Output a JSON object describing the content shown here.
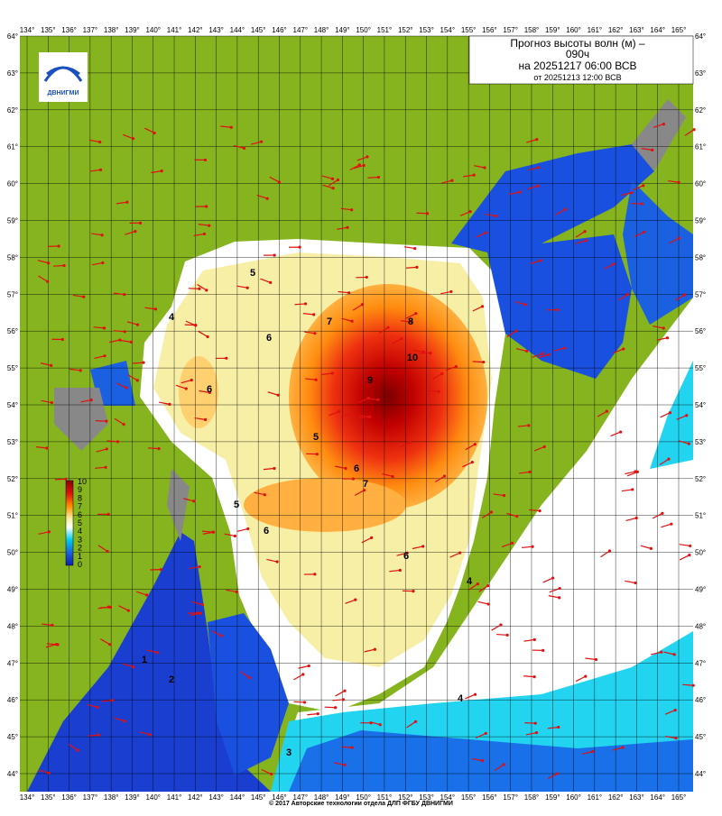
{
  "header": {
    "title_line1": "Прогноз высоты волн (м) –",
    "title_line2": "090ч",
    "title_line3": "на 20251217 06:00 ВСВ",
    "title_line4": "от 20251213 12:00 ВСВ"
  },
  "logo": {
    "text": "ДВНИГМИ"
  },
  "axes": {
    "lon_labels": [
      "134°",
      "135°",
      "136°",
      "137°",
      "138°",
      "139°",
      "140°",
      "141°",
      "142°",
      "143°",
      "144°",
      "145°",
      "146°",
      "147°",
      "148°",
      "149°",
      "150°",
      "151°",
      "152°",
      "153°",
      "154°",
      "155°",
      "156°",
      "157°",
      "158°",
      "159°",
      "160°",
      "161°",
      "162°",
      "163°",
      "164°",
      "165°"
    ],
    "lat_labels": [
      "64°",
      "63°",
      "62°",
      "61°",
      "60°",
      "59°",
      "58°",
      "57°",
      "56°",
      "55°",
      "54°",
      "53°",
      "52°",
      "51°",
      "50°",
      "49°",
      "48°",
      "47°",
      "46°",
      "45°",
      "44°"
    ]
  },
  "colorbar": {
    "labels": [
      "10",
      "9",
      "8",
      "7",
      "6",
      "5",
      "4",
      "3",
      "2",
      "1",
      "0"
    ]
  },
  "contour_labels": [
    "5",
    "4",
    "6",
    "7",
    "8",
    "9",
    "10",
    "6",
    "5",
    "6",
    "7",
    "6",
    "5",
    "6",
    "4",
    "4",
    "1",
    "2",
    "3"
  ],
  "footer": "© 2017 Авторские технологии отдела ДЛП ФГБУ ДВНИГМИ"
}
